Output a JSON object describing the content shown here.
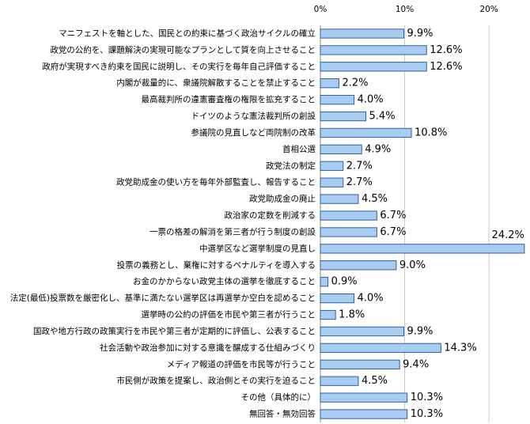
{
  "chart_data": {
    "type": "barh",
    "categories": [
      "マニフェストを軸とした、国民との約束に基づく政治サイクルの確立",
      "政党の公約を、課題解決の実現可能なプランとして質を向上させること",
      "政府が実現すべき約束を国民に説明し、その実行を毎年自己評価すること",
      "内閣が裁量的に、衆議院解散することを禁止すること",
      "最高裁判所の違憲審査権の権限を拡充すること",
      "ドイツのような憲法裁判所の創設",
      "参議院の見直しなど両院制の改革",
      "首相公選",
      "政党法の制定",
      "政党助成金の使い方を毎年外部監査し、報告すること",
      "政党助成金の廃止",
      "政治家の定数を削減する",
      "一票の格差の解消を第三者が行う制度の創設",
      "中選挙区など選挙制度の見直し",
      "投票の義務とし、棄権に対するペナルティを導入する",
      "お金のかからない政党主体の選挙を徹底すること",
      "法定(最低)投票数を厳密化し、基準に満たない選挙区は再選挙か空白を認めること",
      "選挙時の公約の評価を市民や第三者が行うこと",
      "国政や地方行政の政策実行を市民や第三者が定期的に評価し、公表すること",
      "社会活動や政治参加に対する意識を醸成する仕組みづくり",
      "メディア報道の評価を市民等が行うこと",
      "市民側が政策を提案し、政治側とその実行を迫ること",
      "その他（具体的に）",
      "無回答・無効回答"
    ],
    "values": [
      9.9,
      12.6,
      12.6,
      2.2,
      4.0,
      5.4,
      10.8,
      4.9,
      2.7,
      2.7,
      4.5,
      6.7,
      6.7,
      24.2,
      9.0,
      0.9,
      4.0,
      1.8,
      9.9,
      14.3,
      9.4,
      4.5,
      10.3,
      10.3
    ],
    "value_labels": [
      "9.9%",
      "12.6%",
      "12.6%",
      "2.2%",
      "4.0%",
      "5.4%",
      "10.8%",
      "4.9%",
      "2.7%",
      "2.7%",
      "4.5%",
      "6.7%",
      "6.7%",
      "24.2%",
      "9.0%",
      "0.9%",
      "4.0%",
      "1.8%",
      "9.9%",
      "14.3%",
      "9.4%",
      "4.5%",
      "10.3%",
      "10.3%"
    ],
    "color": "#a9cdf0",
    "edge_color": "#2f5f9e",
    "xlim": [
      0,
      24.4
    ],
    "xticks": [
      {
        "value": 0,
        "label": "0%"
      },
      {
        "value": 10,
        "label": "10%"
      },
      {
        "value": 20,
        "label": "20%"
      }
    ],
    "grid": true
  }
}
